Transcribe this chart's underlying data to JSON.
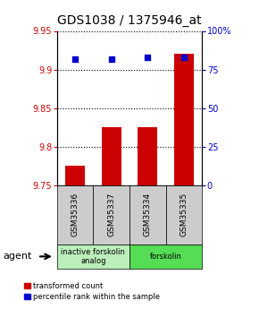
{
  "title": "GDS1038 / 1375946_at",
  "samples": [
    "GSM35336",
    "GSM35337",
    "GSM35334",
    "GSM35335"
  ],
  "bar_values": [
    9.775,
    9.825,
    9.825,
    9.92
  ],
  "percentile_values": [
    82,
    82,
    83,
    83
  ],
  "ylim_left": [
    9.75,
    9.95
  ],
  "ylim_right": [
    0,
    100
  ],
  "yticks_left": [
    9.75,
    9.8,
    9.85,
    9.9,
    9.95
  ],
  "yticks_right": [
    0,
    25,
    50,
    75,
    100
  ],
  "bar_color": "#cc0000",
  "percentile_color": "#0000cc",
  "bar_bottom": 9.75,
  "groups": [
    {
      "label": "inactive forskolin\nanalog",
      "samples": [
        0,
        1
      ],
      "color": "#bbeebb"
    },
    {
      "label": "forskolin",
      "samples": [
        2,
        3
      ],
      "color": "#55dd55"
    }
  ],
  "agent_label": "agent",
  "legend_bar_label": "transformed count",
  "legend_pct_label": "percentile rank within the sample",
  "title_fontsize": 10,
  "tick_fontsize": 7,
  "sample_box_color": "#cccccc",
  "background_color": "#ffffff"
}
